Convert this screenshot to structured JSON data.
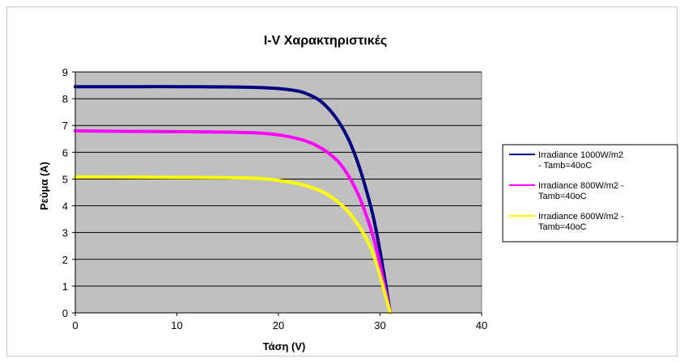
{
  "chart_data": {
    "type": "line",
    "title": "I-V Χαρακτηριστικές",
    "xlabel": "Τάση (V)",
    "ylabel": "Ρεύμα (A)",
    "xlim": [
      0,
      40
    ],
    "ylim": [
      0,
      9
    ],
    "xticks": [
      "0",
      "10",
      "20",
      "30",
      "40"
    ],
    "yticks": [
      "0",
      "1",
      "2",
      "3",
      "4",
      "5",
      "6",
      "7",
      "8",
      "9"
    ],
    "grid": "horizontal",
    "legend_position": "right",
    "plot_background": "#c0c0c0",
    "series": [
      {
        "name": "Irradiance 1000W/m2 - Tamb=40oC",
        "legend_lines": [
          "Irradiance 1000W/m2",
          "- Tamb=40oC"
        ],
        "color": "#000080",
        "points": [
          [
            0,
            8.45
          ],
          [
            5,
            8.45
          ],
          [
            10,
            8.45
          ],
          [
            15,
            8.44
          ],
          [
            18,
            8.42
          ],
          [
            20,
            8.38
          ],
          [
            22,
            8.28
          ],
          [
            23,
            8.15
          ],
          [
            24,
            7.95
          ],
          [
            25,
            7.6
          ],
          [
            26,
            7.1
          ],
          [
            27,
            6.4
          ],
          [
            28,
            5.4
          ],
          [
            29,
            4.1
          ],
          [
            29.5,
            3.3
          ],
          [
            30,
            2.3
          ],
          [
            30.5,
            1.2
          ],
          [
            31,
            0
          ]
        ]
      },
      {
        "name": "Irradiance 800W/m2 - Tamb=40oC",
        "legend_lines": [
          "Irradiance 800W/m2 -",
          "Tamb=40oC"
        ],
        "color": "#ff00ff",
        "points": [
          [
            0,
            6.8
          ],
          [
            5,
            6.78
          ],
          [
            10,
            6.77
          ],
          [
            15,
            6.75
          ],
          [
            18,
            6.72
          ],
          [
            20,
            6.65
          ],
          [
            22,
            6.5
          ],
          [
            23,
            6.38
          ],
          [
            24,
            6.2
          ],
          [
            25,
            5.95
          ],
          [
            26,
            5.6
          ],
          [
            27,
            5.05
          ],
          [
            28,
            4.3
          ],
          [
            29,
            3.25
          ],
          [
            29.5,
            2.6
          ],
          [
            30,
            1.8
          ],
          [
            30.5,
            0.9
          ],
          [
            31,
            0
          ]
        ]
      },
      {
        "name": "Irradiance 600W/m2 - Tamb=40oC",
        "legend_lines": [
          "Irradiance 600W/m2 -",
          "Tamb=40oC"
        ],
        "color": "#ffff00",
        "points": [
          [
            0,
            5.08
          ],
          [
            5,
            5.07
          ],
          [
            10,
            5.06
          ],
          [
            15,
            5.05
          ],
          [
            18,
            5.02
          ],
          [
            20,
            4.95
          ],
          [
            22,
            4.82
          ],
          [
            23,
            4.72
          ],
          [
            24,
            4.58
          ],
          [
            25,
            4.38
          ],
          [
            26,
            4.1
          ],
          [
            27,
            3.72
          ],
          [
            28,
            3.2
          ],
          [
            29,
            2.5
          ],
          [
            29.5,
            2.0
          ],
          [
            30,
            1.4
          ],
          [
            30.5,
            0.7
          ],
          [
            31,
            0
          ]
        ]
      }
    ]
  }
}
